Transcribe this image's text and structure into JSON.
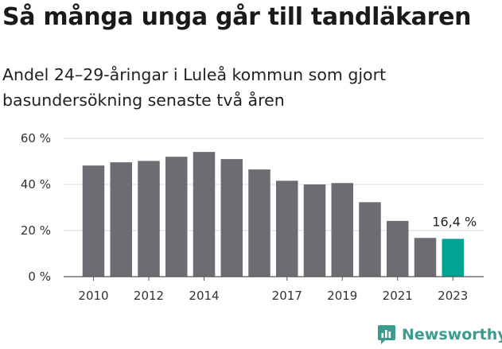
{
  "header": {
    "title": "Så många unga går till tandläkaren",
    "subtitle": "Andel 24–29-åringar i Luleå kommun som gjort basundersökning senaste två åren"
  },
  "brand": {
    "name": "Newsworthy",
    "icon": "newsworthy-logo-icon",
    "color": "#3a9b8e"
  },
  "chart_data": {
    "type": "bar",
    "categories": [
      "2010",
      "2011",
      "2012",
      "2013",
      "2014",
      "2015",
      "2016",
      "2017",
      "2018",
      "2019",
      "2020",
      "2021",
      "2022",
      "2023"
    ],
    "values": [
      48.2,
      49.6,
      50.2,
      52.0,
      54.1,
      51.0,
      46.5,
      41.6,
      40.0,
      40.6,
      32.3,
      24.2,
      16.8,
      16.4
    ],
    "xtick_labels": [
      "2010",
      "",
      "2012",
      "",
      "2014",
      "",
      "",
      "2017",
      "",
      "2019",
      "",
      "2021",
      "",
      "2023"
    ],
    "ytick_labels": [
      "0 %",
      "20 %",
      "40 %",
      "60 %"
    ],
    "yticks": [
      0,
      20,
      40,
      60
    ],
    "ylim": [
      0,
      60
    ],
    "highlight_index": 13,
    "highlight_label": "16,4 %",
    "colors": {
      "bar": "#6e6c72",
      "highlight": "#00a494",
      "grid": "#d9d9d9",
      "axis": "#555555"
    },
    "grid": true
  }
}
